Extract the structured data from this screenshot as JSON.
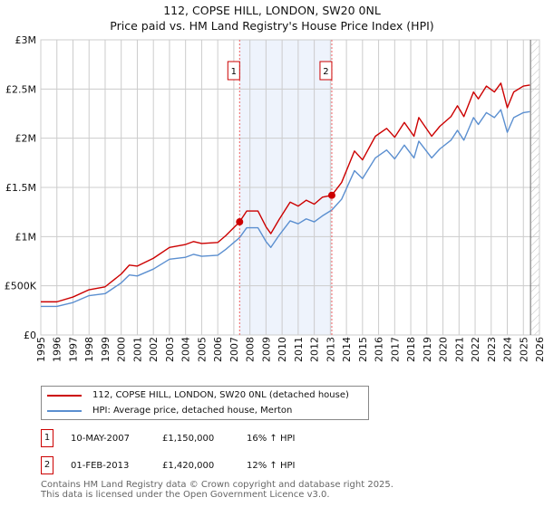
{
  "title": "112, COPSE HILL, LONDON, SW20 0NL",
  "subtitle": "Price paid vs. HM Land Registry's House Price Index (HPI)",
  "colors": {
    "property": "#cc0000",
    "hpi": "#5b8fd0",
    "shade": "#eef3fc"
  },
  "chart_data": {
    "type": "line",
    "xlim": [
      1995,
      2026
    ],
    "ylim": [
      0,
      3000000
    ],
    "x_ticks": [
      "1995",
      "1996",
      "1997",
      "1998",
      "1999",
      "2000",
      "2001",
      "2002",
      "2003",
      "2004",
      "2005",
      "2006",
      "2007",
      "2008",
      "2009",
      "2010",
      "2011",
      "2012",
      "2013",
      "2014",
      "2015",
      "2016",
      "2017",
      "2018",
      "2019",
      "2020",
      "2021",
      "2022",
      "2023",
      "2024",
      "2025",
      "2026"
    ],
    "y_ticks": [
      {
        "v": 0,
        "label": "£0"
      },
      {
        "v": 500000,
        "label": "£500K"
      },
      {
        "v": 1000000,
        "label": "£1M"
      },
      {
        "v": 1500000,
        "label": "£1.5M"
      },
      {
        "v": 2000000,
        "label": "£2M"
      },
      {
        "v": 2500000,
        "label": "£2.5M"
      },
      {
        "v": 3000000,
        "label": "£3M"
      }
    ],
    "grid": true,
    "x": [
      1995,
      1996,
      1997,
      1998,
      1999,
      2000,
      2000.5,
      2001,
      2002,
      2003,
      2004,
      2004.5,
      2005,
      2006,
      2006.5,
      2007.36,
      2007.8,
      2008.5,
      2009,
      2009.3,
      2009.8,
      2010.5,
      2011,
      2011.5,
      2012,
      2012.5,
      2013.09,
      2013.7,
      2014.5,
      2015,
      2015.8,
      2016.5,
      2017,
      2017.6,
      2018.2,
      2018.5,
      2019.3,
      2019.8,
      2020.5,
      2020.9,
      2021.3,
      2021.9,
      2022.2,
      2022.7,
      2023.2,
      2023.6,
      2024.0,
      2024.4,
      2025.0,
      2025.4
    ],
    "series": [
      {
        "name": "112, COPSE HILL, LONDON, SW20 0NL (detached house)",
        "values": [
          0.337,
          0.337,
          0.386,
          0.46,
          0.49,
          0.62,
          0.71,
          0.7,
          0.78,
          0.89,
          0.92,
          0.95,
          0.93,
          0.94,
          1.01,
          1.15,
          1.26,
          1.26,
          1.1,
          1.03,
          1.17,
          1.35,
          1.31,
          1.37,
          1.33,
          1.4,
          1.42,
          1.55,
          1.87,
          1.78,
          2.02,
          2.1,
          2.01,
          2.16,
          2.02,
          2.21,
          2.02,
          2.12,
          2.22,
          2.33,
          2.22,
          2.47,
          2.4,
          2.53,
          2.47,
          2.56,
          2.31,
          2.47,
          2.53,
          2.54
        ]
      },
      {
        "name": "HPI: Average price, detached house, Merton",
        "values": [
          0.29,
          0.29,
          0.33,
          0.4,
          0.42,
          0.53,
          0.61,
          0.6,
          0.67,
          0.77,
          0.79,
          0.82,
          0.8,
          0.81,
          0.87,
          0.99,
          1.09,
          1.09,
          0.95,
          0.89,
          1.01,
          1.16,
          1.13,
          1.18,
          1.15,
          1.21,
          1.27,
          1.38,
          1.67,
          1.59,
          1.8,
          1.88,
          1.79,
          1.93,
          1.8,
          1.97,
          1.8,
          1.89,
          1.98,
          2.08,
          1.98,
          2.21,
          2.14,
          2.26,
          2.21,
          2.29,
          2.06,
          2.21,
          2.26,
          2.27
        ]
      }
    ],
    "value_unit": "millions GBP",
    "sales": [
      {
        "label": "1",
        "x": 2007.36,
        "value": 1150000
      },
      {
        "label": "2",
        "x": 2013.09,
        "value": 1420000
      }
    ],
    "forecast_start": 2025.5
  },
  "legend": {
    "property": "112, COPSE HILL, LONDON, SW20 0NL (detached house)",
    "hpi": "HPI: Average price, detached house, Merton"
  },
  "transactions": [
    {
      "num": "1",
      "date": "10-MAY-2007",
      "price": "£1,150,000",
      "delta": "16% ↑ HPI"
    },
    {
      "num": "2",
      "date": "01-FEB-2013",
      "price": "£1,420,000",
      "delta": "12% ↑ HPI"
    }
  ],
  "footer": {
    "line1": "Contains HM Land Registry data © Crown copyright and database right 2025.",
    "line2": "This data is licensed under the Open Government Licence v3.0."
  }
}
